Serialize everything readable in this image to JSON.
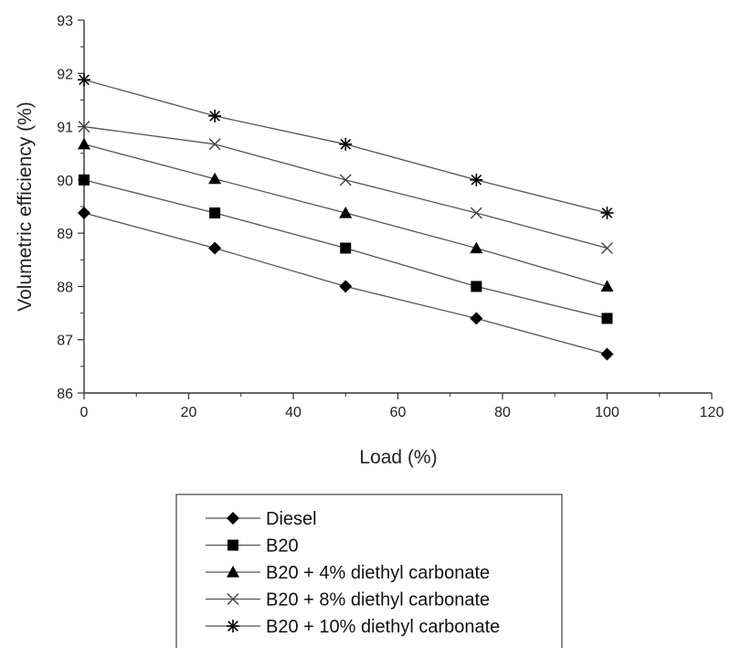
{
  "chart_data": {
    "type": "line",
    "xlabel": "Load (%)",
    "ylabel": "Volumetric efficiency (%)",
    "xlim": [
      0,
      120
    ],
    "ylim": [
      86,
      93
    ],
    "x_ticks": [
      0,
      20,
      40,
      60,
      80,
      100,
      120
    ],
    "y_ticks": [
      86,
      87,
      88,
      89,
      90,
      91,
      92,
      93
    ],
    "grid": false,
    "legend_position": "below",
    "x": [
      0,
      25,
      50,
      75,
      100
    ],
    "series": [
      {
        "name": "Diesel",
        "marker": "diamond",
        "values": [
          89.38,
          88.72,
          88.0,
          87.4,
          86.73
        ]
      },
      {
        "name": "B20",
        "marker": "square",
        "values": [
          90.0,
          89.38,
          88.72,
          88.0,
          87.4
        ]
      },
      {
        "name": "B20 + 4% diethyl carbonate",
        "marker": "triangle",
        "values": [
          90.67,
          90.02,
          89.38,
          88.72,
          88.0
        ]
      },
      {
        "name": "B20 + 8% diethyl carbonate",
        "marker": "x",
        "values": [
          91.0,
          90.67,
          90.0,
          89.38,
          88.72
        ]
      },
      {
        "name": "B20 + 10% diethyl carbonate",
        "marker": "star",
        "values": [
          91.88,
          91.2,
          90.67,
          90.0,
          89.38
        ]
      }
    ],
    "line_color": "#555555",
    "marker_color": "#000000"
  }
}
